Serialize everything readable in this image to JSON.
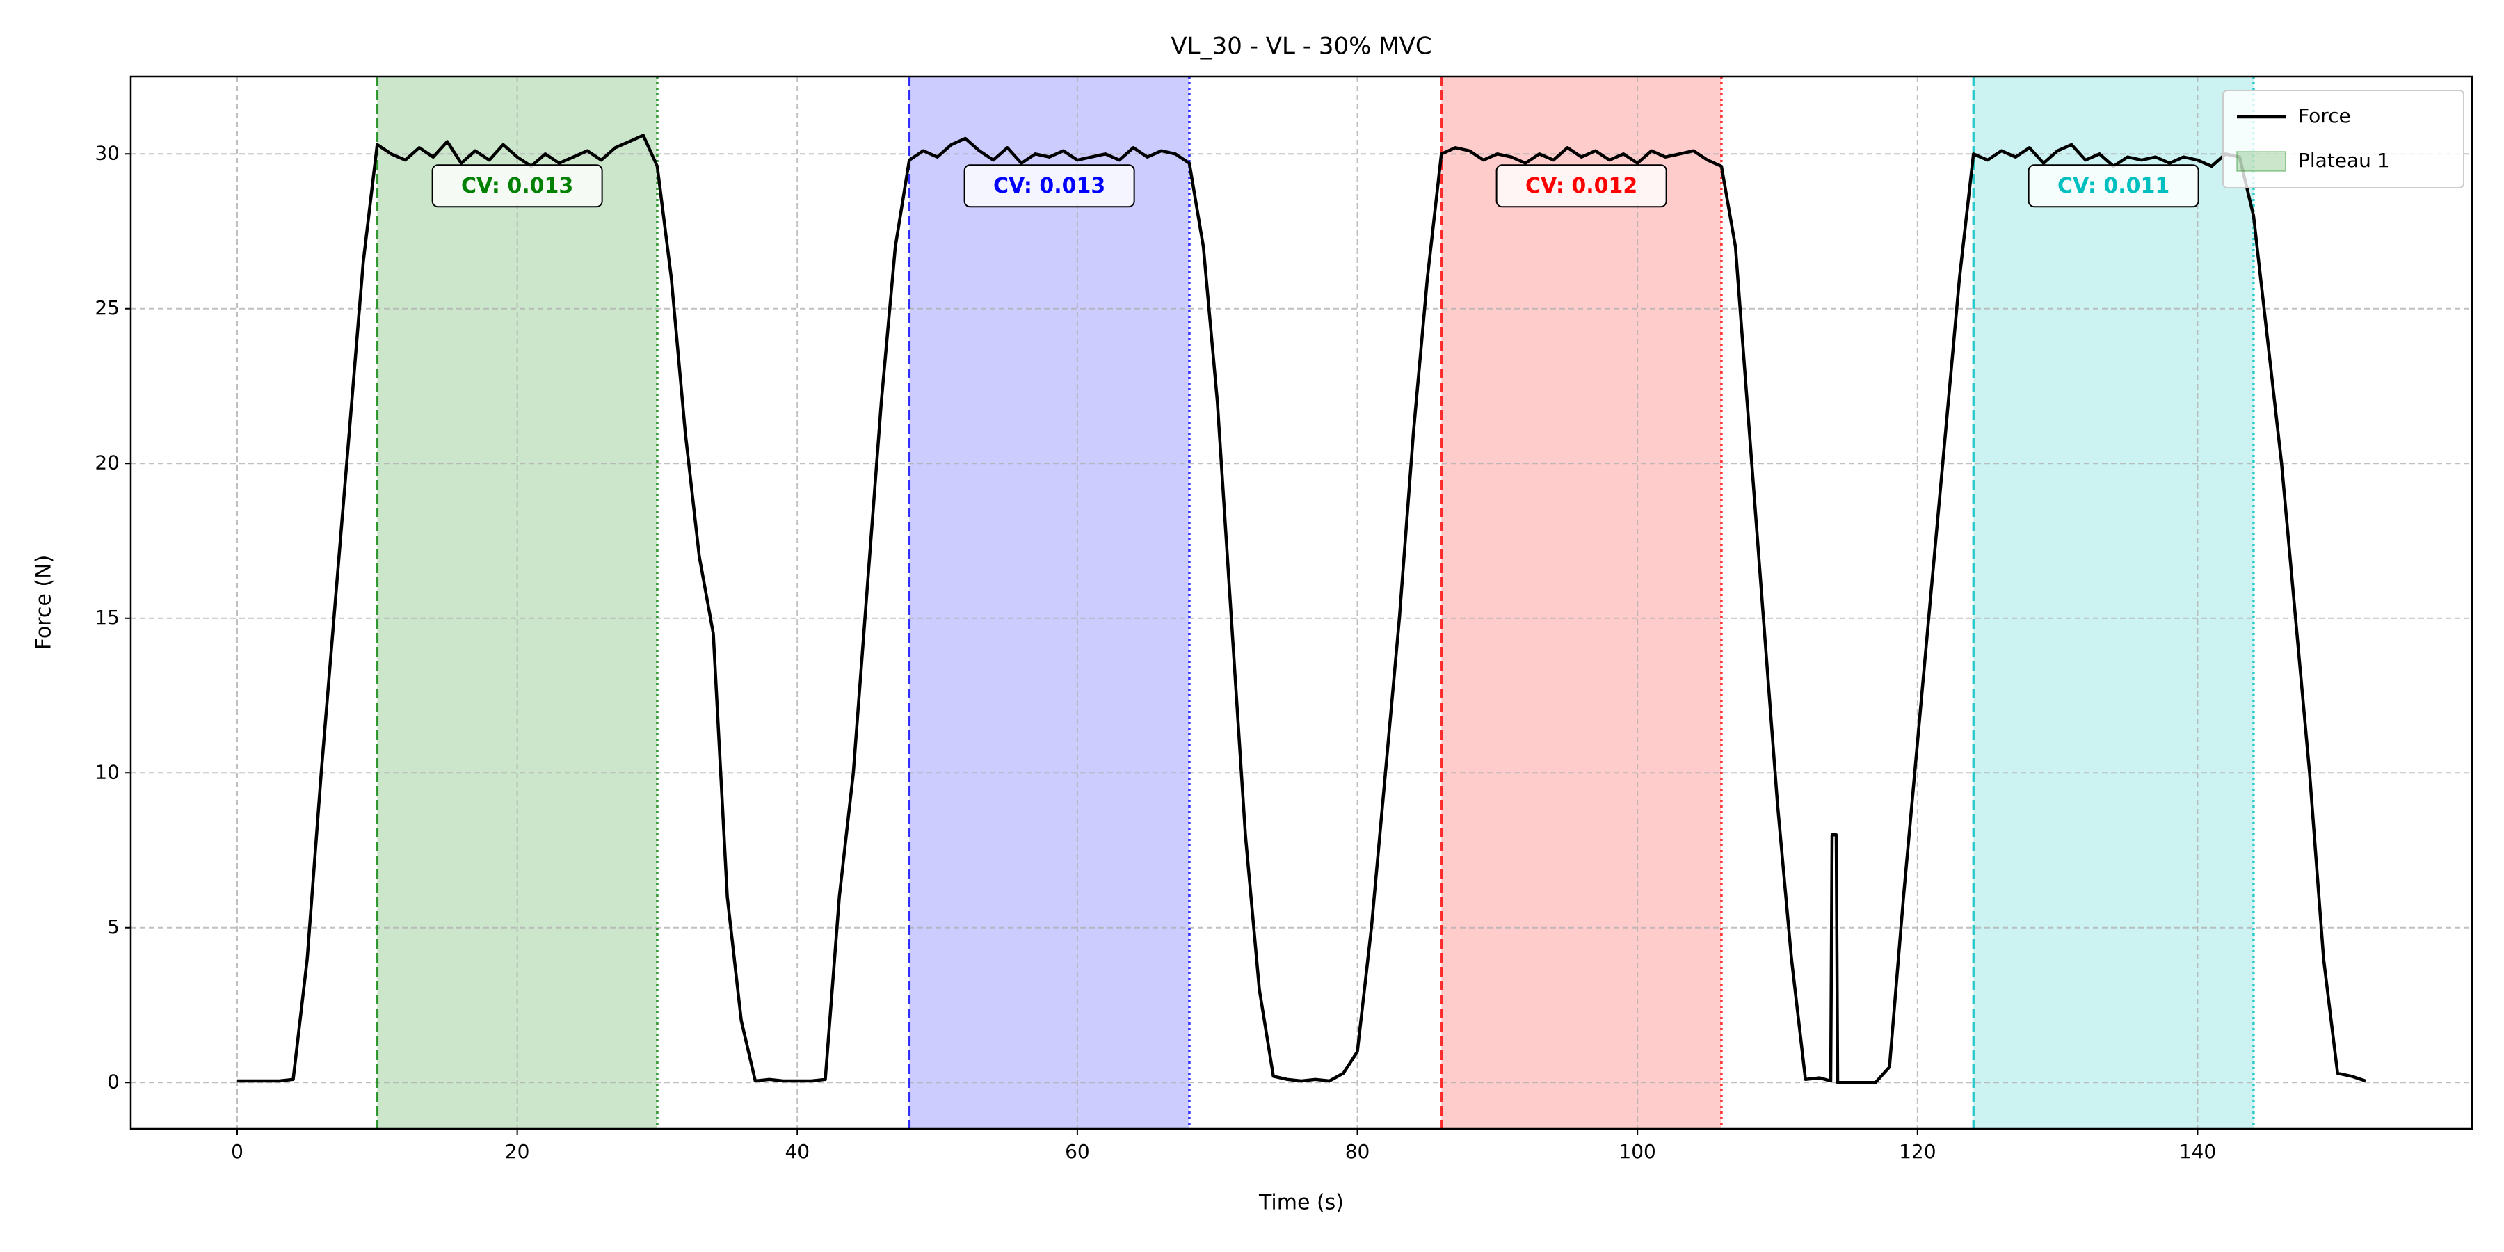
{
  "chart_data": {
    "type": "line",
    "title": "VL_30 - VL - 30% MVC",
    "x_label": "Time (s)",
    "y_label": "Force (N)",
    "x": [
      0,
      1,
      2,
      3,
      4,
      5,
      6,
      7,
      8,
      9,
      10,
      11,
      12,
      13,
      14,
      15,
      16,
      17,
      18,
      19,
      20,
      21,
      22,
      23,
      24,
      25,
      26,
      27,
      28,
      29,
      30,
      31,
      32,
      33,
      34,
      35,
      36,
      37,
      38,
      39,
      40,
      41,
      42,
      43,
      44,
      45,
      46,
      47,
      48,
      49,
      50,
      51,
      52,
      53,
      54,
      55,
      56,
      57,
      58,
      59,
      60,
      61,
      62,
      63,
      64,
      65,
      66,
      67,
      68,
      69,
      70,
      71,
      72,
      73,
      74,
      75,
      76,
      77,
      78,
      79,
      80,
      81,
      82,
      83,
      84,
      85,
      86,
      87,
      88,
      89,
      90,
      91,
      92,
      93,
      94,
      95,
      96,
      97,
      98,
      99,
      100,
      101,
      102,
      103,
      104,
      105,
      106,
      107,
      108,
      109,
      110,
      111,
      112,
      113,
      113.8,
      113.9,
      114.2,
      114.3,
      115,
      116,
      117,
      118,
      119,
      120,
      121,
      122,
      123,
      124,
      125,
      126,
      127,
      128,
      129,
      130,
      131,
      132,
      133,
      134,
      135,
      136,
      137,
      138,
      139,
      140,
      141,
      142,
      143,
      144,
      145,
      146,
      147,
      148,
      149,
      150,
      151,
      152
    ],
    "series": [
      {
        "name": "Force",
        "color": "#000000",
        "values": [
          0.05,
          0.05,
          0.05,
          0.05,
          0.1,
          4,
          10,
          15.5,
          21,
          26.5,
          30.3,
          30,
          29.8,
          30.2,
          29.9,
          30.4,
          29.7,
          30.1,
          29.8,
          30.3,
          29.9,
          29.6,
          30,
          29.7,
          29.9,
          30.1,
          29.8,
          30.2,
          30.4,
          30.6,
          29.6,
          26,
          21,
          17,
          14.5,
          6,
          2,
          0.05,
          0.1,
          0.05,
          0.05,
          0.05,
          0.1,
          6,
          10,
          16,
          22,
          27,
          29.8,
          30.1,
          29.9,
          30.3,
          30.5,
          30.1,
          29.8,
          30.2,
          29.7,
          30,
          29.9,
          30.1,
          29.8,
          29.9,
          30,
          29.8,
          30.2,
          29.9,
          30.1,
          30,
          29.7,
          27,
          22,
          15,
          8,
          3,
          0.2,
          0.1,
          0.05,
          0.1,
          0.05,
          0.3,
          1,
          5,
          10,
          15,
          21,
          26,
          30,
          30.2,
          30.1,
          29.8,
          30,
          29.9,
          29.7,
          30,
          29.8,
          30.2,
          29.9,
          30.1,
          29.8,
          30,
          29.7,
          30.1,
          29.9,
          30,
          30.1,
          29.8,
          29.6,
          27,
          21,
          15,
          9,
          4,
          0.1,
          0.15,
          0.05,
          8,
          8,
          0,
          0,
          0,
          0,
          0.5,
          6,
          11,
          16,
          21,
          26,
          30,
          29.8,
          30.1,
          29.9,
          30.2,
          29.7,
          30.1,
          30.3,
          29.8,
          30,
          29.6,
          29.9,
          29.8,
          29.9,
          29.7,
          29.9,
          29.8,
          29.6,
          30,
          29.9,
          28,
          24,
          20,
          15,
          10,
          4,
          0.3,
          0.2,
          0.05
        ]
      }
    ],
    "plateaus": [
      {
        "name": "Plateau 1",
        "start": 10,
        "end": 30,
        "color": "#008000",
        "label": "CV: 0.013"
      },
      {
        "start": 48,
        "end": 68,
        "color": "#0000ff",
        "label": "CV: 0.013"
      },
      {
        "start": 86,
        "end": 106,
        "color": "#ff0000",
        "label": "CV: 0.012"
      },
      {
        "start": 124,
        "end": 144,
        "color": "#00bfbf",
        "label": "CV: 0.011"
      }
    ],
    "xlim": [
      -7.6,
      159.6
    ],
    "ylim": [
      -1.5,
      32.5
    ],
    "xticks": [
      0,
      20,
      40,
      60,
      80,
      100,
      120,
      140
    ],
    "yticks": [
      0,
      5,
      10,
      15,
      20,
      25,
      30
    ],
    "grid": true,
    "legend": "upper right"
  }
}
